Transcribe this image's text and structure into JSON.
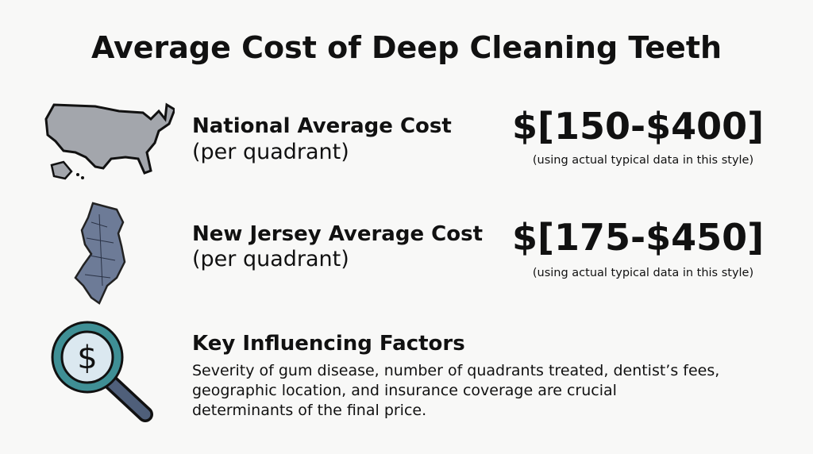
{
  "header": {
    "title": "Average Cost of Deep Cleaning Teeth"
  },
  "rows": [
    {
      "label": "National Average Cost",
      "sublabel": "(per quadrant)",
      "price": "$[150-$400]",
      "note": "(using actual typical data in this style)"
    },
    {
      "label": "New Jersey Average Cost",
      "sublabel": "(per quadrant)",
      "price": "$[175-$450]",
      "note": "(using actual typical data in this style)"
    }
  ],
  "factors": {
    "heading": "Key Influencing Factors",
    "lines": [
      "Severity of gum disease, number of quadrants treated, dentist’s fees,",
      "geographic location, and insurance coverage are crucial",
      "determinants of the final price."
    ]
  }
}
